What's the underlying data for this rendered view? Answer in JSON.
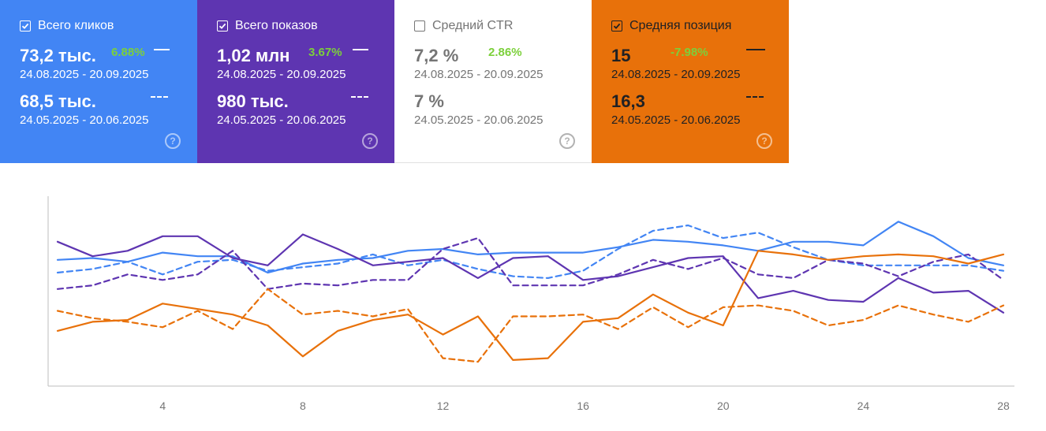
{
  "cards": [
    {
      "id": "clicks",
      "title": "Всего кликов",
      "checked": true,
      "bg": "#4285f4",
      "text_color": "#ffffff",
      "current": "73,2 тыс.",
      "change": "6.88%",
      "current_range": "24.08.2025 - 20.09.2025",
      "previous": "68,5 тыс.",
      "previous_range": "24.05.2025 - 20.06.2025",
      "help": "?"
    },
    {
      "id": "impressions",
      "title": "Всего показов",
      "checked": true,
      "bg": "#5e35b1",
      "text_color": "#ffffff",
      "current": "1,02 млн",
      "change": "3.67%",
      "current_range": "24.08.2025 - 20.09.2025",
      "previous": "980 тыс.",
      "previous_range": "24.05.2025 - 20.06.2025",
      "help": "?"
    },
    {
      "id": "ctr",
      "title": "Средний CTR",
      "checked": false,
      "bg": "#ffffff",
      "text_color": "#757575",
      "current": "7,2 %",
      "change": "2.86%",
      "current_range": "24.08.2025 - 20.09.2025",
      "previous": "7 %",
      "previous_range": "24.05.2025 - 20.06.2025",
      "help": "?"
    },
    {
      "id": "position",
      "title": "Средняя позиция",
      "checked": true,
      "bg": "#e8710a",
      "text_color": "#202124",
      "current": "15",
      "change": "-7.98%",
      "current_range": "24.08.2025 - 20.09.2025",
      "previous": "16,3",
      "previous_range": "24.05.2025 - 20.06.2025",
      "help": "?"
    }
  ],
  "chart_data": {
    "type": "line",
    "x": [
      1,
      2,
      3,
      4,
      5,
      6,
      7,
      8,
      9,
      10,
      11,
      12,
      13,
      14,
      15,
      16,
      17,
      18,
      19,
      20,
      21,
      22,
      23,
      24,
      25,
      26,
      27,
      28
    ],
    "xticks": [
      4,
      8,
      12,
      16,
      20,
      24,
      28
    ],
    "ylim": [
      0,
      100
    ],
    "grid": false,
    "series": [
      {
        "color": "#4285f4",
        "dash": false,
        "values": [
          65,
          66,
          64,
          69,
          67,
          67,
          58,
          63,
          65,
          66,
          70,
          71,
          68,
          69,
          69,
          69,
          72,
          76,
          75,
          73,
          70,
          75,
          75,
          73,
          86,
          78,
          66,
          62
        ]
      },
      {
        "color": "#4285f4",
        "dash": true,
        "values": [
          58,
          60,
          64,
          57,
          64,
          65,
          59,
          61,
          63,
          68,
          62,
          65,
          60,
          56,
          55,
          59,
          71,
          81,
          84,
          77,
          80,
          72,
          65,
          62,
          62,
          62,
          62,
          59
        ]
      },
      {
        "color": "#5e35b1",
        "dash": false,
        "values": [
          75,
          67,
          70,
          78,
          78,
          66,
          62,
          79,
          71,
          62,
          64,
          66,
          55,
          66,
          67,
          54,
          56,
          61,
          66,
          67,
          44,
          48,
          43,
          42,
          55,
          47,
          48,
          36
        ]
      },
      {
        "color": "#5e35b1",
        "dash": true,
        "values": [
          49,
          51,
          57,
          54,
          57,
          70,
          49,
          52,
          51,
          54,
          54,
          71,
          77,
          51,
          51,
          51,
          57,
          65,
          60,
          66,
          57,
          55,
          65,
          63,
          56,
          64,
          68,
          54
        ]
      },
      {
        "color": "#e8710a",
        "dash": false,
        "values": [
          26,
          31,
          32,
          41,
          38,
          35,
          29,
          12,
          26,
          32,
          35,
          24,
          34,
          10,
          11,
          31,
          33,
          46,
          36,
          29,
          70,
          68,
          65,
          67,
          68,
          67,
          63,
          68
        ]
      },
      {
        "color": "#e8710a",
        "dash": true,
        "values": [
          37,
          33,
          31,
          28,
          37,
          27,
          49,
          35,
          37,
          34,
          38,
          11,
          9,
          34,
          34,
          35,
          27,
          39,
          28,
          39,
          40,
          37,
          29,
          32,
          40,
          35,
          31,
          40
        ]
      }
    ]
  }
}
